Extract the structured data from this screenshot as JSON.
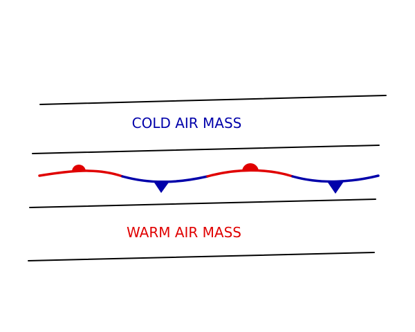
{
  "labels": {
    "cold": "COLD AIR MASS",
    "warm": "WARM AIR MASS"
  },
  "colors": {
    "cold": "#0000aa",
    "warm": "#e00000",
    "isobar": "#000000",
    "background": "#ffffff"
  },
  "front": {
    "type": "stationary-front",
    "segments": [
      "warm",
      "cold",
      "warm",
      "cold"
    ],
    "symbols": [
      {
        "kind": "semicircle",
        "color": "warm",
        "side": "cold-air-side"
      },
      {
        "kind": "triangle",
        "color": "cold",
        "side": "warm-air-side"
      },
      {
        "kind": "semicircle",
        "color": "warm",
        "side": "cold-air-side"
      },
      {
        "kind": "triangle",
        "color": "cold",
        "side": "warm-air-side"
      }
    ]
  },
  "isobars": {
    "count": 4,
    "color": "isobar"
  }
}
